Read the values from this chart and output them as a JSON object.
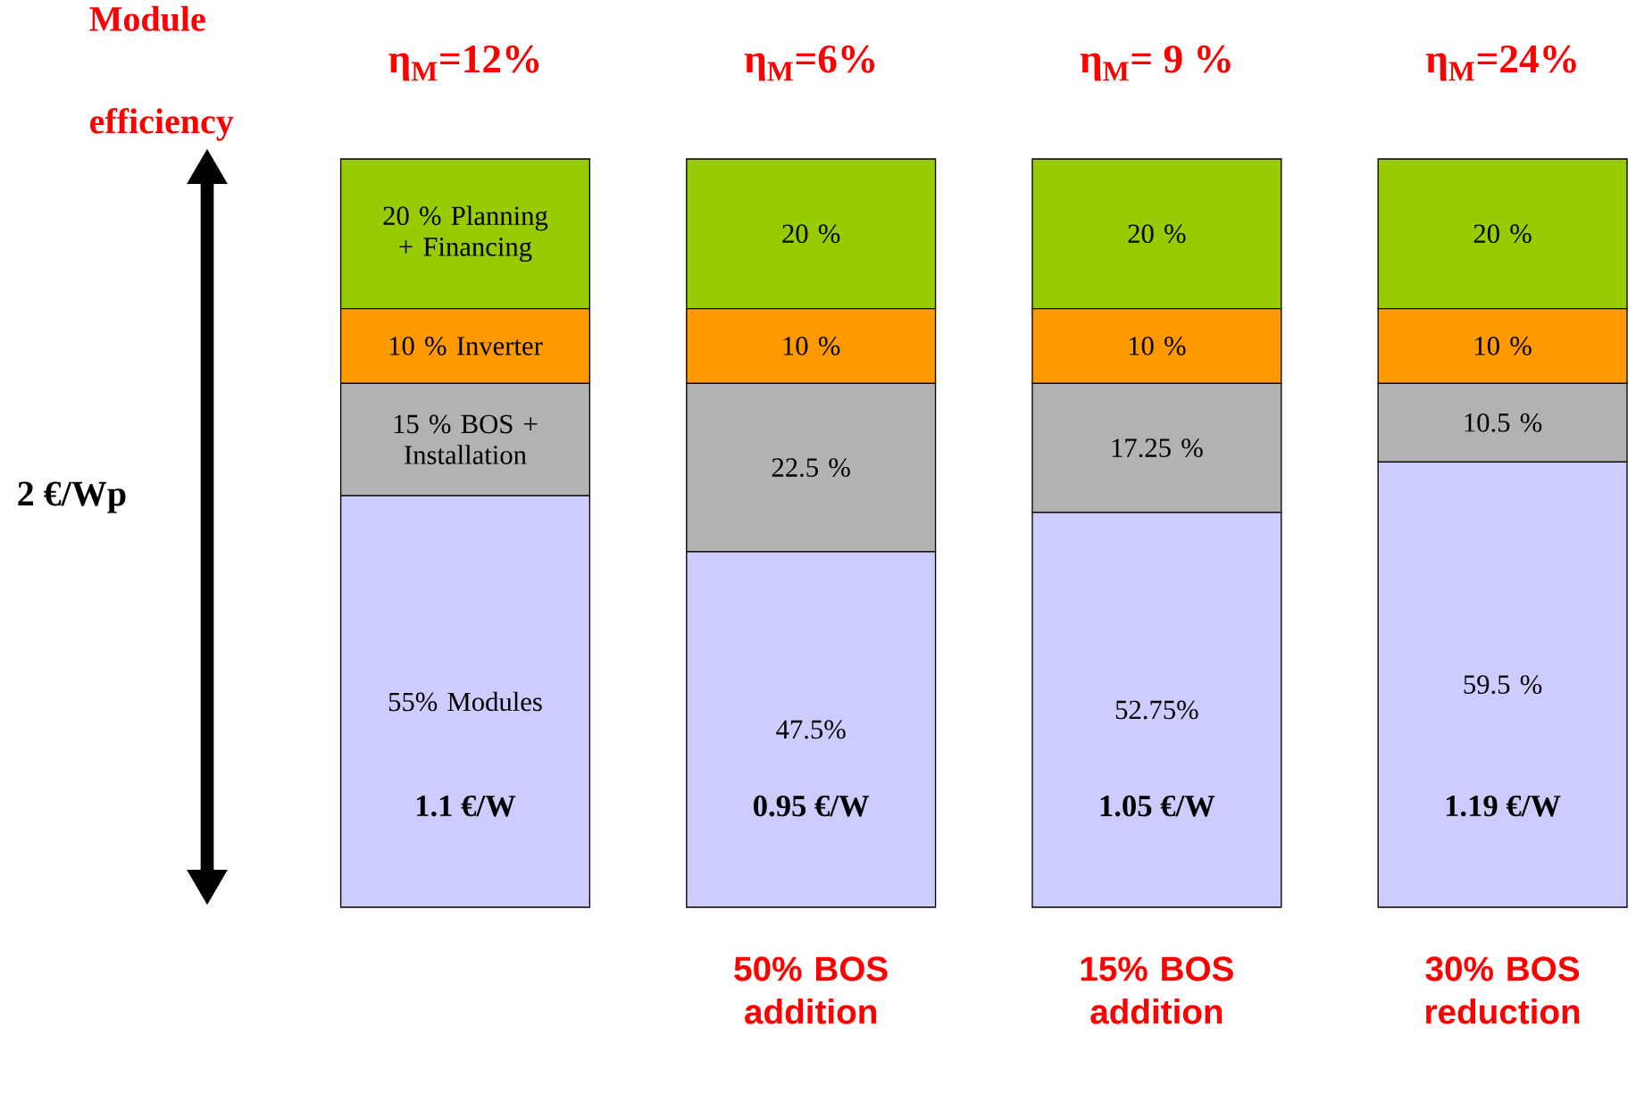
{
  "chart_data": {
    "type": "bar",
    "stacked": true,
    "categories": [
      "η$_{M}$=12%",
      "η$_{M}$=6%",
      "η$_{M}$= 9 %",
      "η$_{M}$=24%"
    ],
    "series": [
      {
        "color": "#ccccff",
        "values": [
          55,
          47.5,
          52.75,
          59.5
        ],
        "value_labels": [
          "55% Modules",
          "47.5%",
          "52.75%",
          "59.5 %"
        ]
      },
      {
        "color": "#b2b2b2",
        "values": [
          15,
          22.5,
          17.25,
          10.5
        ],
        "value_labels": [
          "15 %   BOS + Installation",
          "22.5 %",
          "17.25 %",
          "10.5 %"
        ]
      },
      {
        "color": "#ff9900",
        "values": [
          10,
          10,
          10,
          10
        ],
        "value_labels": [
          "10 %   Inverter",
          "10 %",
          "10 %",
          "10 %"
        ]
      },
      {
        "color": "#99cc00",
        "values": [
          20,
          20,
          20,
          20
        ],
        "value_labels": [
          "20 %  Planning + Financing",
          "20 %",
          "20 %",
          "20 %"
        ]
      }
    ],
    "annotations": [
      "Module efficiency",
      "2 €/Wp",
      "1.1 €/W",
      "0.95 €/W",
      "1.05 €/W",
      "1.19 €/W",
      "50% BOS addition",
      "15% BOS addition",
      "30% BOS reduction"
    ]
  }
}
